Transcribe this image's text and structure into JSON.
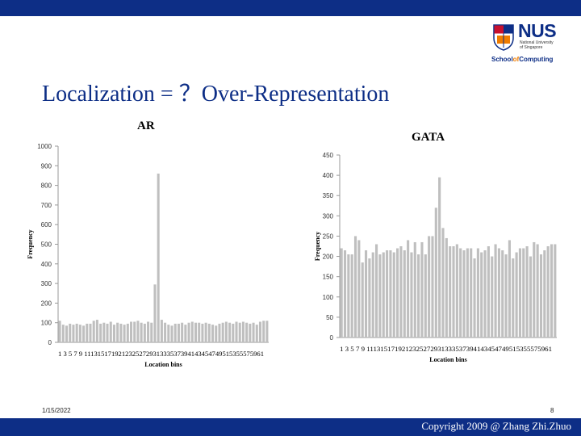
{
  "slide": {
    "title": "Localization = ？Over-Representation",
    "date": "1/15/2022",
    "page_number": "8",
    "copyright": "Copyright 2009 @ Zhang Zhi.Zhuo",
    "brand_color": "#0d2e86"
  },
  "logo": {
    "name": "NUS",
    "line1": "National University",
    "line2": "of Singapore",
    "school_prefix": "School",
    "school_of": "of",
    "school_suffix": "Computing"
  },
  "chart_data": [
    {
      "type": "bar",
      "title": "AR",
      "xlabel": "Location bins",
      "ylabel": "Frequency",
      "ylim": [
        0,
        1000
      ],
      "yticks": [
        0,
        100,
        200,
        300,
        400,
        500,
        600,
        700,
        800,
        900,
        1000
      ],
      "xtick_text": "1 3 5 7 9 1113151719212325272931333537394143454749515355575961",
      "grid": false,
      "bar_color": "#bfbfbf",
      "categories": [
        1,
        2,
        3,
        4,
        5,
        6,
        7,
        8,
        9,
        10,
        11,
        12,
        13,
        14,
        15,
        16,
        17,
        18,
        19,
        20,
        21,
        22,
        23,
        24,
        25,
        26,
        27,
        28,
        29,
        30,
        31,
        32,
        33,
        34,
        35,
        36,
        37,
        38,
        39,
        40,
        41,
        42,
        43,
        44,
        45,
        46,
        47,
        48,
        49,
        50,
        51,
        52,
        53,
        54,
        55,
        56,
        57,
        58,
        59,
        60,
        61,
        62
      ],
      "values": [
        110,
        90,
        85,
        95,
        90,
        95,
        90,
        85,
        95,
        95,
        110,
        115,
        95,
        100,
        95,
        105,
        90,
        100,
        95,
        90,
        95,
        105,
        105,
        110,
        100,
        95,
        105,
        100,
        295,
        860,
        115,
        100,
        90,
        85,
        95,
        95,
        100,
        90,
        100,
        105,
        100,
        100,
        95,
        100,
        95,
        90,
        85,
        95,
        100,
        105,
        100,
        95,
        105,
        100,
        105,
        100,
        95,
        100,
        90,
        105,
        110,
        110
      ]
    },
    {
      "type": "bar",
      "title": "GATA",
      "xlabel": "Location bins",
      "ylabel": "Frequency",
      "ylim": [
        0,
        450
      ],
      "yticks": [
        0,
        50,
        100,
        150,
        200,
        250,
        300,
        350,
        400,
        450
      ],
      "xtick_text": "1 3 5 7 9 1113151719212325272931333537394143454749515355575961",
      "grid": false,
      "bar_color": "#bfbfbf",
      "categories": [
        1,
        2,
        3,
        4,
        5,
        6,
        7,
        8,
        9,
        10,
        11,
        12,
        13,
        14,
        15,
        16,
        17,
        18,
        19,
        20,
        21,
        22,
        23,
        24,
        25,
        26,
        27,
        28,
        29,
        30,
        31,
        32,
        33,
        34,
        35,
        36,
        37,
        38,
        39,
        40,
        41,
        42,
        43,
        44,
        45,
        46,
        47,
        48,
        49,
        50,
        51,
        52,
        53,
        54,
        55,
        56,
        57,
        58,
        59,
        60,
        61,
        62
      ],
      "values": [
        220,
        215,
        205,
        205,
        250,
        240,
        185,
        215,
        195,
        210,
        230,
        205,
        210,
        215,
        215,
        210,
        220,
        225,
        215,
        240,
        210,
        235,
        205,
        235,
        205,
        250,
        250,
        320,
        395,
        270,
        245,
        225,
        225,
        230,
        220,
        215,
        220,
        220,
        195,
        220,
        210,
        215,
        225,
        200,
        230,
        220,
        215,
        205,
        240,
        195,
        210,
        220,
        220,
        225,
        200,
        235,
        230,
        205,
        215,
        225,
        230,
        230
      ]
    }
  ]
}
